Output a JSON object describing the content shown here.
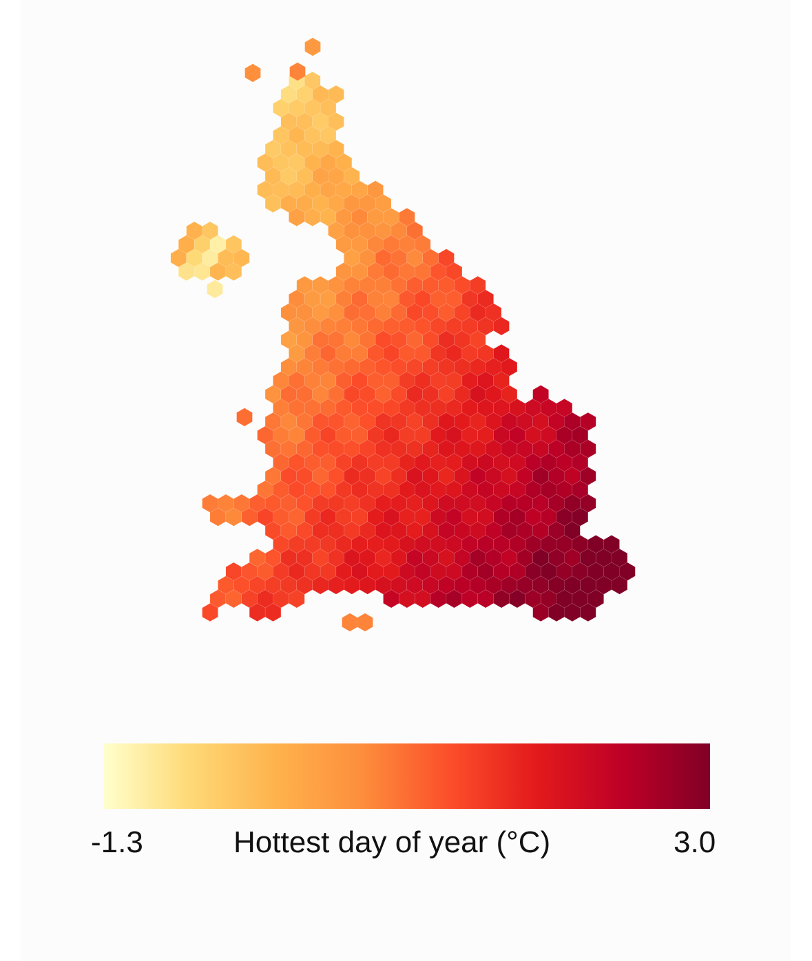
{
  "legend": {
    "title": "Hottest day of year (°C)",
    "min_label": "-1.3",
    "max_label": "3.0",
    "min_value": -1.3,
    "max_value": 3.0,
    "colors": [
      "#ffffcc",
      "#fed976",
      "#feb24c",
      "#fd8d3c",
      "#fc4e2a",
      "#e31a1c",
      "#bd0026",
      "#800026"
    ]
  },
  "colors": {
    "background": "#fcfcfc",
    "text": "#111111"
  }
}
